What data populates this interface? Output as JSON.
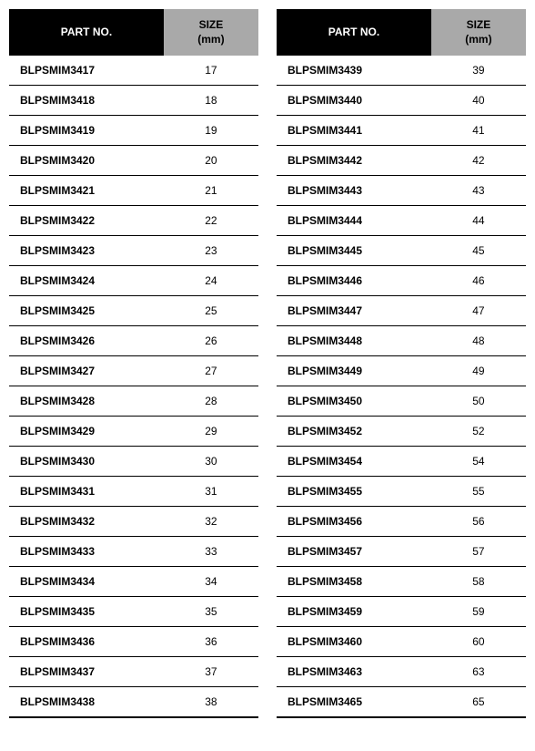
{
  "headers": {
    "part_no": "PART NO.",
    "size_line1": "SIZE",
    "size_line2": "(mm)"
  },
  "styling": {
    "header_part_bg": "#000000",
    "header_part_color": "#ffffff",
    "header_size_bg": "#a9a9a9",
    "header_size_color": "#000000",
    "row_border_color": "#000000",
    "font_family": "Arial, Helvetica, sans-serif",
    "header_font_size_pt": 9,
    "cell_font_size_pt": 9,
    "part_col_width_pct": 62,
    "size_col_width_pct": 38,
    "background": "#ffffff"
  },
  "table_left": {
    "columns": [
      "part_no",
      "size_mm"
    ],
    "rows": [
      [
        "BLPSMIM3417",
        "17"
      ],
      [
        "BLPSMIM3418",
        "18"
      ],
      [
        "BLPSMIM3419",
        "19"
      ],
      [
        "BLPSMIM3420",
        "20"
      ],
      [
        "BLPSMIM3421",
        "21"
      ],
      [
        "BLPSMIM3422",
        "22"
      ],
      [
        "BLPSMIM3423",
        "23"
      ],
      [
        "BLPSMIM3424",
        "24"
      ],
      [
        "BLPSMIM3425",
        "25"
      ],
      [
        "BLPSMIM3426",
        "26"
      ],
      [
        "BLPSMIM3427",
        "27"
      ],
      [
        "BLPSMIM3428",
        "28"
      ],
      [
        "BLPSMIM3429",
        "29"
      ],
      [
        "BLPSMIM3430",
        "30"
      ],
      [
        "BLPSMIM3431",
        "31"
      ],
      [
        "BLPSMIM3432",
        "32"
      ],
      [
        "BLPSMIM3433",
        "33"
      ],
      [
        "BLPSMIM3434",
        "34"
      ],
      [
        "BLPSMIM3435",
        "35"
      ],
      [
        "BLPSMIM3436",
        "36"
      ],
      [
        "BLPSMIM3437",
        "37"
      ],
      [
        "BLPSMIM3438",
        "38"
      ]
    ]
  },
  "table_right": {
    "columns": [
      "part_no",
      "size_mm"
    ],
    "rows": [
      [
        "BLPSMIM3439",
        "39"
      ],
      [
        "BLPSMIM3440",
        "40"
      ],
      [
        "BLPSMIM3441",
        "41"
      ],
      [
        "BLPSMIM3442",
        "42"
      ],
      [
        "BLPSMIM3443",
        "43"
      ],
      [
        "BLPSMIM3444",
        "44"
      ],
      [
        "BLPSMIM3445",
        "45"
      ],
      [
        "BLPSMIM3446",
        "46"
      ],
      [
        "BLPSMIM3447",
        "47"
      ],
      [
        "BLPSMIM3448",
        "48"
      ],
      [
        "BLPSMIM3449",
        "49"
      ],
      [
        "BLPSMIM3450",
        "50"
      ],
      [
        "BLPSMIM3452",
        "52"
      ],
      [
        "BLPSMIM3454",
        "54"
      ],
      [
        "BLPSMIM3455",
        "55"
      ],
      [
        "BLPSMIM3456",
        "56"
      ],
      [
        "BLPSMIM3457",
        "57"
      ],
      [
        "BLPSMIM3458",
        "58"
      ],
      [
        "BLPSMIM3459",
        "59"
      ],
      [
        "BLPSMIM3460",
        "60"
      ],
      [
        "BLPSMIM3463",
        "63"
      ],
      [
        "BLPSMIM3465",
        "65"
      ]
    ]
  }
}
